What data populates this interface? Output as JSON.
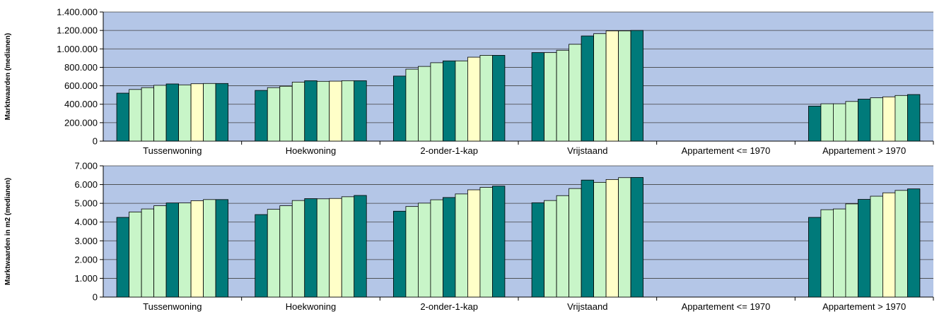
{
  "colors": {
    "plot_bg": "#B4C6E7",
    "gridline": "#404040",
    "bar_stroke": "#000000",
    "series_palette": [
      "#007A7A",
      "#C8F5C8",
      "#C8F5C8",
      "#C8F5C8",
      "#007A7A",
      "#C8F5C8",
      "#FFFFC8",
      "#C8F5C8",
      "#007A7A"
    ],
    "palette_note_names": [
      "teal",
      "light-green",
      "light-yellow"
    ]
  },
  "chart_data": [
    {
      "type": "bar",
      "title": "",
      "xlabel": "",
      "ylabel": "Marktwaarden (medianen)",
      "ylim": [
        0,
        1400000
      ],
      "yticks": [
        0,
        200000,
        400000,
        600000,
        800000,
        1000000,
        1200000,
        1400000
      ],
      "ytick_labels": [
        "0",
        "200.000",
        "400.000",
        "600.000",
        "800.000",
        "1.000.000",
        "1.200.000",
        "1.400.000"
      ],
      "grid": true,
      "categories": [
        "Tussenwoning",
        "Hoekwoning",
        "2-onder-1-kap",
        "Vrijstaand",
        "Appartement <= 1970",
        "Appartement > 1970"
      ],
      "series": [
        {
          "values": [
            520000,
            550000,
            705000,
            960000,
            null,
            380000
          ]
        },
        {
          "values": [
            560000,
            580000,
            780000,
            960000,
            null,
            405000
          ]
        },
        {
          "values": [
            580000,
            595000,
            810000,
            985000,
            null,
            405000
          ]
        },
        {
          "values": [
            605000,
            640000,
            850000,
            1050000,
            null,
            430000
          ]
        },
        {
          "values": [
            620000,
            655000,
            870000,
            1140000,
            null,
            455000
          ]
        },
        {
          "values": [
            610000,
            648000,
            870000,
            1165000,
            null,
            470000
          ]
        },
        {
          "values": [
            622000,
            650000,
            910000,
            1195000,
            null,
            480000
          ]
        },
        {
          "values": [
            625000,
            655000,
            930000,
            1195000,
            null,
            495000
          ]
        },
        {
          "values": [
            625000,
            655000,
            930000,
            1200000,
            null,
            505000
          ]
        }
      ]
    },
    {
      "type": "bar",
      "title": "",
      "xlabel": "",
      "ylabel": "Marktwaarden in m2 (medianen)",
      "ylim": [
        0,
        7000
      ],
      "yticks": [
        0,
        1000,
        2000,
        3000,
        4000,
        5000,
        6000,
        7000
      ],
      "ytick_labels": [
        "0",
        "1.000",
        "2.000",
        "3.000",
        "4.000",
        "5.000",
        "6.000",
        "7.000"
      ],
      "grid": true,
      "categories": [
        "Tussenwoning",
        "Hoekwoning",
        "2-onder-1-kap",
        "Vrijstaand",
        "Appartement <= 1970",
        "Appartement > 1970"
      ],
      "series": [
        {
          "values": [
            4250,
            4400,
            4580,
            5030,
            null,
            4250
          ]
        },
        {
          "values": [
            4540,
            4680,
            4830,
            5150,
            null,
            4660
          ]
        },
        {
          "values": [
            4700,
            4870,
            5010,
            5410,
            null,
            4700
          ]
        },
        {
          "values": [
            4870,
            5150,
            5190,
            5790,
            null,
            4970
          ]
        },
        {
          "values": [
            5020,
            5250,
            5310,
            6240,
            null,
            5210
          ]
        },
        {
          "values": [
            5020,
            5240,
            5500,
            6120,
            null,
            5380
          ]
        },
        {
          "values": [
            5140,
            5260,
            5720,
            6270,
            null,
            5560
          ]
        },
        {
          "values": [
            5200,
            5350,
            5850,
            6370,
            null,
            5690
          ]
        },
        {
          "values": [
            5200,
            5420,
            5920,
            6380,
            null,
            5770
          ]
        }
      ]
    }
  ]
}
